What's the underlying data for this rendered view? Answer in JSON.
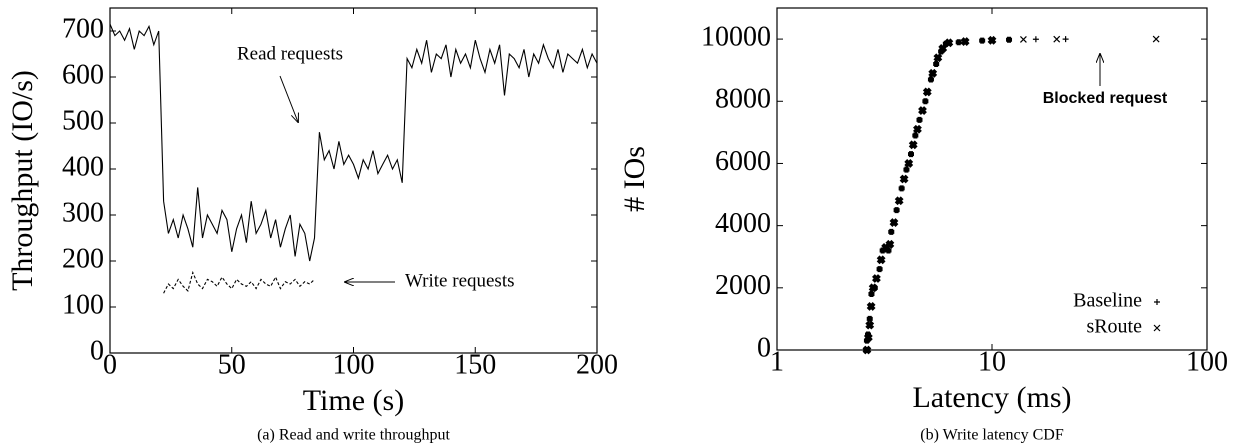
{
  "chart_data": [
    {
      "type": "line",
      "caption": "(a) Read and write throughput",
      "xlabel": "Time (s)",
      "ylabel": "Throughput (IO/s)",
      "xlim": [
        0,
        200
      ],
      "xticks": [
        0,
        50,
        100,
        150,
        200
      ],
      "ylim": [
        0,
        750
      ],
      "yticks": [
        0,
        100,
        200,
        300,
        400,
        500,
        600,
        700
      ],
      "series": [
        {
          "name": "Read requests",
          "color": "#000000",
          "linestyle": "solid",
          "x": [
            0,
            2,
            4,
            6,
            8,
            10,
            12,
            14,
            16,
            18,
            20,
            22,
            24,
            26,
            28,
            30,
            32,
            34,
            36,
            38,
            40,
            42,
            44,
            46,
            48,
            50,
            52,
            54,
            56,
            58,
            60,
            62,
            64,
            66,
            68,
            70,
            72,
            74,
            76,
            78,
            80,
            82,
            84,
            86,
            88,
            90,
            92,
            94,
            96,
            98,
            100,
            102,
            104,
            106,
            108,
            110,
            112,
            114,
            116,
            118,
            120,
            122,
            124,
            126,
            128,
            130,
            132,
            134,
            136,
            138,
            140,
            142,
            144,
            146,
            148,
            150,
            152,
            154,
            156,
            158,
            160,
            162,
            164,
            166,
            168,
            170,
            172,
            174,
            176,
            178,
            180,
            182,
            184,
            186,
            188,
            190,
            192,
            194,
            196,
            198,
            200
          ],
          "values": [
            715,
            690,
            700,
            680,
            705,
            660,
            700,
            690,
            710,
            670,
            700,
            330,
            260,
            290,
            250,
            300,
            270,
            230,
            360,
            250,
            300,
            280,
            260,
            310,
            290,
            220,
            270,
            300,
            240,
            330,
            260,
            280,
            310,
            250,
            290,
            230,
            270,
            300,
            210,
            280,
            260,
            200,
            250,
            480,
            420,
            440,
            400,
            460,
            410,
            430,
            410,
            380,
            420,
            400,
            440,
            390,
            410,
            430,
            400,
            420,
            370,
            640,
            620,
            660,
            630,
            680,
            610,
            650,
            640,
            670,
            600,
            660,
            630,
            650,
            620,
            680,
            640,
            610,
            660,
            630,
            670,
            560,
            650,
            640,
            620,
            660,
            600,
            650,
            630,
            670,
            640,
            620,
            660,
            610,
            650,
            640,
            630,
            660,
            620,
            650,
            630
          ]
        },
        {
          "name": "Write requests",
          "color": "#000000",
          "linestyle": "dashed",
          "x": [
            22,
            24,
            26,
            28,
            30,
            32,
            34,
            36,
            38,
            40,
            42,
            44,
            46,
            48,
            50,
            52,
            54,
            56,
            58,
            60,
            62,
            64,
            66,
            68,
            70,
            72,
            74,
            76,
            78,
            80,
            82,
            84
          ],
          "values": [
            130,
            150,
            140,
            160,
            145,
            135,
            175,
            150,
            140,
            160,
            155,
            145,
            165,
            150,
            140,
            160,
            150,
            145,
            155,
            140,
            160,
            150,
            145,
            165,
            140,
            155,
            150,
            160,
            145,
            155,
            150,
            160
          ]
        }
      ]
    },
    {
      "type": "scatter",
      "caption": "(b) Write latency CDF",
      "xlabel": "Latency (ms)",
      "ylabel": "# IOs",
      "xscale": "log",
      "xlim": [
        1,
        100
      ],
      "xticks": [
        1,
        10,
        100
      ],
      "ylim": [
        0,
        11000
      ],
      "yticks": [
        0,
        2000,
        4000,
        6000,
        8000,
        10000
      ],
      "legend": "lower right",
      "annotation": "Blocked request",
      "series": [
        {
          "name": "Baseline",
          "color": "#000000",
          "marker": "+",
          "x": [
            2.6,
            2.62,
            2.65,
            2.7,
            2.75,
            2.85,
            3.0,
            3.1,
            3.3,
            3.4,
            3.6,
            3.8,
            4.0,
            4.2,
            4.4,
            4.6,
            4.9,
            5.2,
            5.5,
            5.8,
            6.1,
            7,
            9,
            12,
            16,
            22
          ],
          "values": [
            0,
            300,
            500,
            1000,
            1800,
            2000,
            2600,
            3200,
            3200,
            3800,
            4500,
            5200,
            5800,
            6300,
            6900,
            7400,
            8000,
            8700,
            9200,
            9600,
            9850,
            9900,
            9950,
            9980,
            9995,
            10000
          ]
        },
        {
          "name": "sRoute",
          "color": "#000000",
          "marker": "x",
          "x": [
            2.62,
            2.66,
            2.7,
            2.74,
            2.8,
            2.9,
            3.05,
            3.2,
            3.35,
            3.5,
            3.7,
            3.9,
            4.1,
            4.3,
            4.5,
            4.75,
            5.0,
            5.3,
            5.6,
            5.9,
            6.3,
            7.5,
            10,
            14,
            20,
            58
          ],
          "values": [
            0,
            400,
            800,
            1400,
            2000,
            2300,
            2900,
            3300,
            3400,
            4100,
            4800,
            5500,
            6000,
            6600,
            7100,
            7700,
            8300,
            8900,
            9400,
            9700,
            9880,
            9920,
            9960,
            9990,
            9998,
            10000
          ]
        }
      ]
    }
  ]
}
